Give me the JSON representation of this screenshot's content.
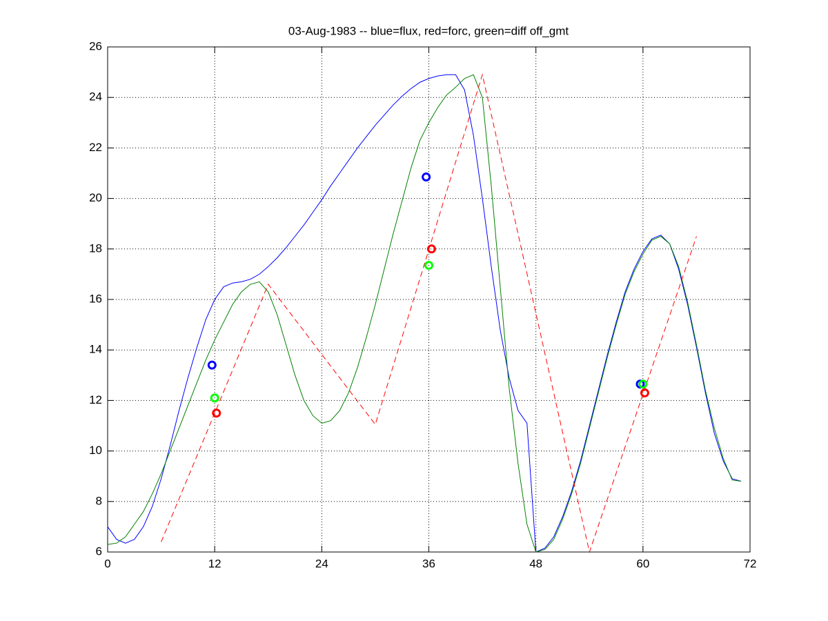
{
  "chart_data": {
    "type": "line",
    "title": "03-Aug-1983 -- blue=flux, red=forc, green=diff off_gmt",
    "xlim": [
      0,
      72
    ],
    "xticks": [
      0,
      12,
      24,
      36,
      48,
      60,
      72
    ],
    "ylim": [
      6,
      26
    ],
    "yticks": [
      6,
      8,
      10,
      12,
      14,
      16,
      18,
      20,
      22,
      24,
      26
    ],
    "grid": true,
    "series": [
      {
        "color": "#0000ff",
        "dash": false,
        "marker": null,
        "x": [
          0,
          1,
          2,
          3,
          4,
          5,
          6,
          7,
          8,
          9,
          10,
          11,
          12,
          13,
          14,
          15,
          16,
          17,
          18,
          19,
          20,
          21,
          22,
          23,
          24,
          25,
          26,
          27,
          28,
          29,
          30,
          31,
          32,
          33,
          34,
          35,
          36,
          37,
          38,
          39,
          40,
          41,
          42,
          43,
          44,
          45,
          46,
          47,
          48,
          49,
          50,
          51,
          52,
          53,
          54,
          55,
          56,
          57,
          58,
          59,
          60,
          61,
          62,
          63,
          64,
          65,
          66,
          67,
          68,
          69,
          70,
          71
        ],
        "values": [
          7.0,
          6.5,
          6.35,
          6.5,
          7.0,
          7.8,
          8.9,
          10.2,
          11.6,
          12.9,
          14.1,
          15.2,
          16.0,
          16.5,
          16.65,
          16.7,
          16.8,
          17.0,
          17.3,
          17.65,
          18.05,
          18.5,
          18.95,
          19.45,
          19.95,
          20.5,
          21.0,
          21.5,
          22.0,
          22.45,
          22.9,
          23.3,
          23.7,
          24.05,
          24.35,
          24.6,
          24.75,
          24.85,
          24.9,
          24.9,
          24.3,
          22.5,
          20.0,
          17.3,
          14.8,
          12.9,
          11.6,
          11.1,
          6.0,
          6.15,
          6.6,
          7.4,
          8.4,
          9.6,
          11.0,
          12.4,
          13.8,
          15.1,
          16.3,
          17.2,
          17.9,
          18.4,
          18.55,
          18.2,
          17.2,
          15.8,
          14.1,
          12.3,
          10.7,
          9.6,
          8.9,
          8.8
        ]
      },
      {
        "color": "#008000",
        "dash": false,
        "marker": null,
        "x": [
          0,
          1,
          2,
          3,
          4,
          5,
          6,
          7,
          8,
          9,
          10,
          11,
          12,
          13,
          14,
          15,
          16,
          17,
          18,
          19,
          20,
          21,
          22,
          23,
          24,
          25,
          26,
          27,
          28,
          29,
          30,
          31,
          32,
          33,
          34,
          35,
          36,
          37,
          38,
          39,
          40,
          41,
          42,
          43,
          44,
          45,
          46,
          47,
          48,
          49,
          50,
          51,
          52,
          53,
          54,
          55,
          56,
          57,
          58,
          59,
          60,
          61,
          62,
          63,
          64,
          65,
          66,
          67,
          68,
          69,
          70,
          71
        ],
        "values": [
          6.3,
          6.35,
          6.6,
          7.1,
          7.6,
          8.3,
          9.1,
          10.0,
          10.9,
          11.8,
          12.7,
          13.6,
          14.4,
          15.1,
          15.8,
          16.3,
          16.6,
          16.7,
          16.3,
          15.4,
          14.2,
          13.0,
          12.0,
          11.4,
          11.1,
          11.2,
          11.6,
          12.3,
          13.3,
          14.5,
          15.8,
          17.2,
          18.6,
          19.9,
          21.2,
          22.3,
          23.0,
          23.6,
          24.1,
          24.4,
          24.75,
          24.9,
          24.0,
          20.5,
          16.5,
          12.5,
          9.5,
          7.1,
          6.0,
          6.1,
          6.5,
          7.3,
          8.3,
          9.5,
          10.9,
          12.3,
          13.7,
          15.0,
          16.2,
          17.1,
          17.8,
          18.35,
          18.5,
          18.2,
          17.3,
          15.9,
          14.2,
          12.4,
          10.9,
          9.7,
          8.85,
          8.8
        ]
      },
      {
        "color": "#ff0000",
        "dash": true,
        "marker": null,
        "x": [
          6,
          18,
          30,
          42,
          54,
          66
        ],
        "values": [
          6.4,
          16.6,
          11.05,
          24.9,
          6.0,
          18.5
        ]
      },
      {
        "color": "#0000ff",
        "dash": false,
        "marker": "circle",
        "x": [
          11.7,
          35.7,
          59.7
        ],
        "values": [
          13.4,
          20.85,
          12.65
        ]
      },
      {
        "color": "#00ff00",
        "dash": false,
        "marker": "circle",
        "x": [
          12.0,
          36.0,
          60.0
        ],
        "values": [
          12.1,
          17.35,
          12.65
        ]
      },
      {
        "color": "#ff0000",
        "dash": false,
        "marker": "circle",
        "x": [
          12.2,
          36.3,
          60.2
        ],
        "values": [
          11.5,
          18.0,
          12.3
        ]
      }
    ]
  }
}
